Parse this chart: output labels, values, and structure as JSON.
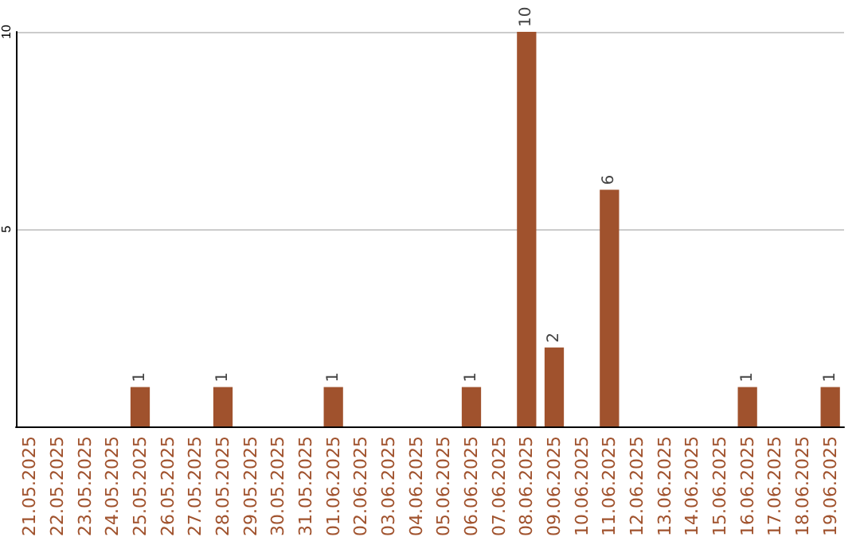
{
  "chart_data": {
    "type": "bar",
    "categories": [
      "21.05.2025",
      "22.05.2025",
      "23.05.2025",
      "24.05.2025",
      "25.05.2025",
      "26.05.2025",
      "27.05.2025",
      "28.05.2025",
      "29.05.2025",
      "30.05.2025",
      "31.05.2025",
      "01.06.2025",
      "02.06.2025",
      "03.06.2025",
      "04.06.2025",
      "05.06.2025",
      "06.06.2025",
      "07.06.2025",
      "08.06.2025",
      "09.06.2025",
      "10.06.2025",
      "11.06.2025",
      "12.06.2025",
      "13.06.2025",
      "14.06.2025",
      "15.06.2025",
      "16.06.2025",
      "17.06.2025",
      "18.06.2025",
      "19.06.2025"
    ],
    "values": [
      0,
      0,
      0,
      0,
      1,
      0,
      0,
      1,
      0,
      0,
      0,
      1,
      0,
      0,
      0,
      0,
      1,
      0,
      10,
      2,
      0,
      6,
      0,
      0,
      0,
      0,
      1,
      0,
      0,
      1
    ],
    "value_labels": [
      null,
      null,
      null,
      null,
      "1",
      null,
      null,
      "1",
      null,
      null,
      null,
      "1",
      null,
      null,
      null,
      null,
      "1",
      null,
      "10",
      "2",
      null,
      "6",
      null,
      null,
      null,
      null,
      "1",
      null,
      null,
      "1"
    ],
    "color": "#a0522d",
    "ylim": [
      0,
      10
    ],
    "yticks": [
      {
        "value": 0,
        "label": null
      },
      5,
      10
    ],
    "grid": "y"
  }
}
